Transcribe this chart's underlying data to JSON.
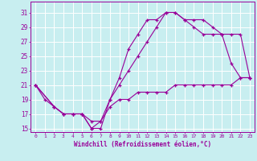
{
  "xlabel": "Windchill (Refroidissement éolien,°C)",
  "background_color": "#c8eef0",
  "line_color": "#990099",
  "grid_color": "#ffffff",
  "xlim": [
    -0.5,
    23.5
  ],
  "ylim": [
    14.5,
    32.5
  ],
  "xticks": [
    0,
    1,
    2,
    3,
    4,
    5,
    6,
    7,
    8,
    9,
    10,
    11,
    12,
    13,
    14,
    15,
    16,
    17,
    18,
    19,
    20,
    21,
    22,
    23
  ],
  "yticks": [
    15,
    17,
    19,
    21,
    23,
    25,
    27,
    29,
    31
  ],
  "line1_x": [
    0,
    1,
    2,
    3,
    4,
    5,
    6,
    7,
    8,
    9,
    10,
    11,
    12,
    13,
    14,
    15,
    16,
    17,
    18,
    19,
    20,
    21,
    22,
    23
  ],
  "line1_y": [
    21,
    19,
    18,
    17,
    17,
    17,
    15,
    15,
    19,
    22,
    26,
    28,
    30,
    30,
    31,
    31,
    30,
    30,
    30,
    29,
    28,
    24,
    22,
    22
  ],
  "line2_x": [
    0,
    2,
    3,
    4,
    5,
    6,
    7,
    8,
    9,
    10,
    11,
    12,
    13,
    14,
    15,
    16,
    17,
    18,
    19,
    20,
    21,
    22,
    23
  ],
  "line2_y": [
    21,
    18,
    17,
    17,
    17,
    15,
    16,
    19,
    21,
    23,
    25,
    27,
    29,
    31,
    31,
    30,
    29,
    28,
    28,
    28,
    28,
    28,
    22
  ],
  "line3_x": [
    0,
    2,
    3,
    4,
    5,
    6,
    7,
    8,
    9,
    10,
    11,
    12,
    13,
    14,
    15,
    16,
    17,
    18,
    19,
    20,
    21,
    22,
    23
  ],
  "line3_y": [
    21,
    18,
    17,
    17,
    17,
    16,
    16,
    18,
    19,
    19,
    20,
    20,
    20,
    20,
    21,
    21,
    21,
    21,
    21,
    21,
    21,
    22,
    22
  ]
}
